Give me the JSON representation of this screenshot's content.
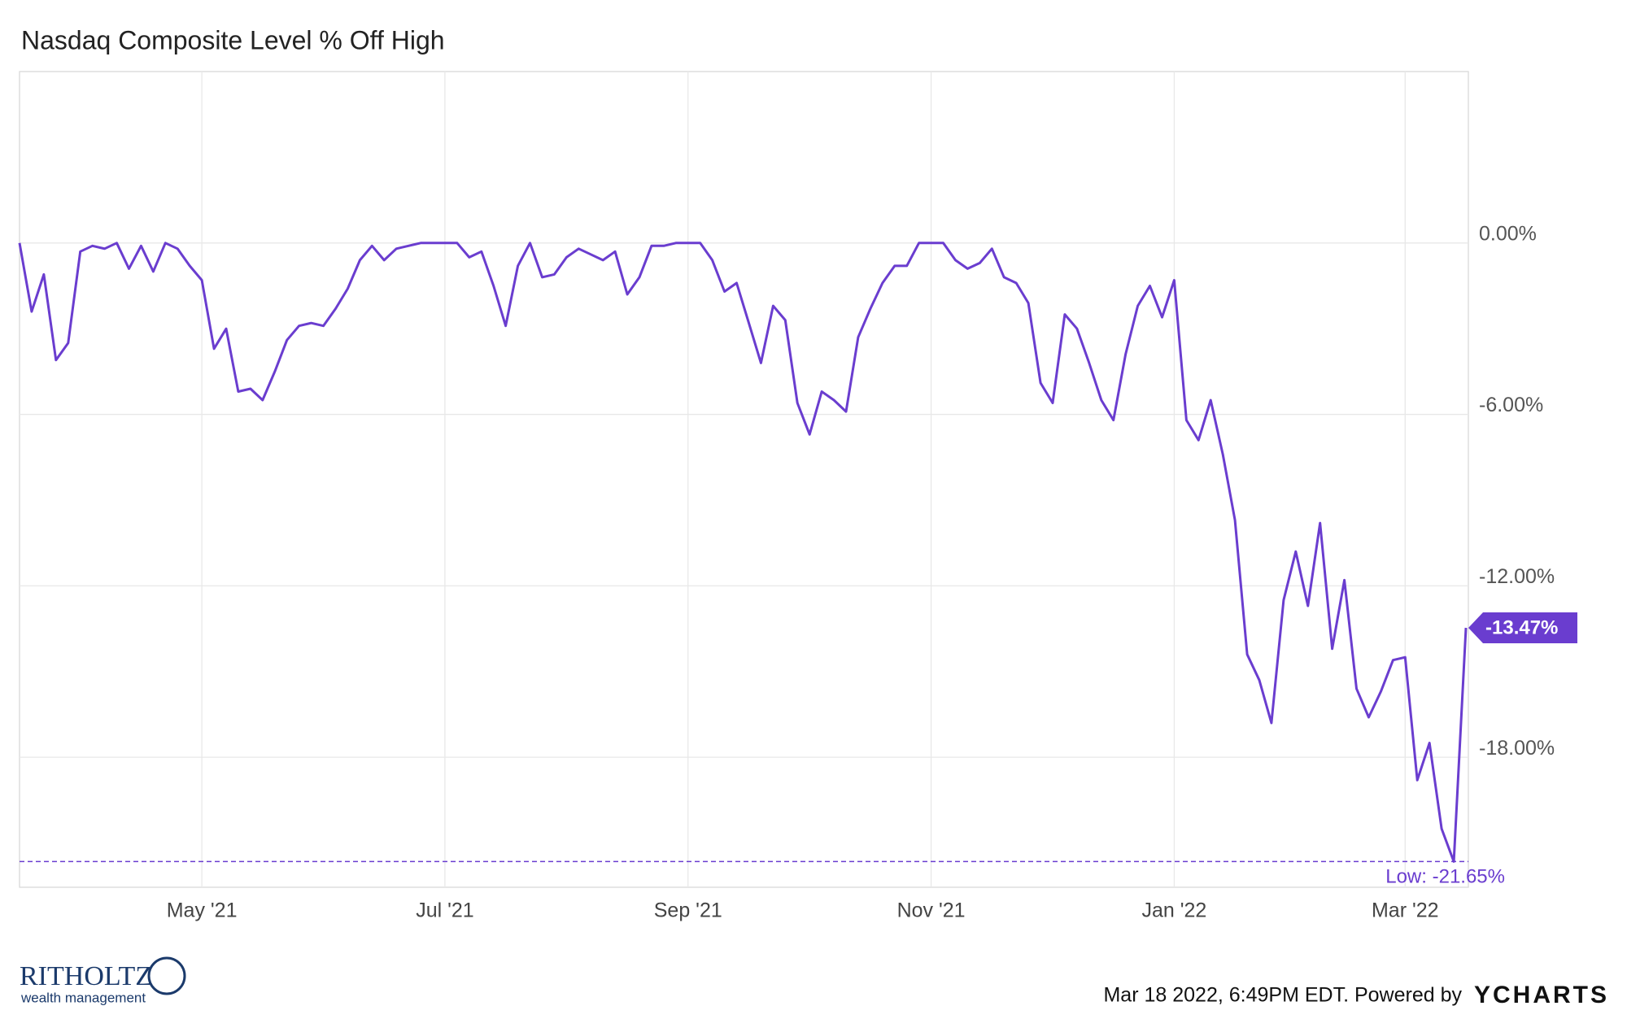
{
  "chart_data": {
    "type": "line",
    "title": "Nasdaq Composite Level % Off High",
    "categories": [
      null,
      null,
      null,
      null,
      null,
      null,
      null,
      null,
      null,
      null,
      null,
      null,
      null,
      null,
      null,
      "May '21",
      null,
      null,
      null,
      null,
      null,
      null,
      null,
      null,
      null,
      null,
      null,
      null,
      null,
      null,
      null,
      null,
      null,
      null,
      null,
      "Jul '21",
      null,
      null,
      null,
      null,
      null,
      null,
      null,
      null,
      null,
      null,
      null,
      null,
      null,
      null,
      null,
      null,
      null,
      null,
      null,
      "Sep '21",
      null,
      null,
      null,
      null,
      null,
      null,
      null,
      null,
      null,
      null,
      null,
      null,
      null,
      null,
      null,
      null,
      null,
      null,
      null,
      "Nov '21",
      null,
      null,
      null,
      null,
      null,
      null,
      null,
      null,
      null,
      null,
      null,
      null,
      null,
      null,
      null,
      null,
      null,
      null,
      null,
      "Jan '22",
      null,
      null,
      null,
      null,
      null,
      null,
      null,
      null,
      null,
      null,
      null,
      null,
      null,
      null,
      null,
      null,
      null,
      null,
      "Mar '22",
      null,
      null,
      null,
      null,
      null
    ],
    "series": [
      {
        "name": "Nasdaq Composite Level % Off High",
        "color": "#6a3dcf",
        "values": [
          0,
          -2.4,
          -1.1,
          -4.1,
          -3.5,
          -0.3,
          -0.1,
          -0.2,
          0,
          -0.9,
          -0.1,
          -1.0,
          0,
          -0.2,
          -0.8,
          -1.3,
          -3.7,
          -3.0,
          -5.2,
          -5.1,
          -5.5,
          -4.5,
          -3.4,
          -2.9,
          -2.8,
          -2.9,
          -2.3,
          -1.6,
          -0.6,
          -0.1,
          -0.6,
          -0.2,
          -0.1,
          0,
          0,
          0,
          0,
          -0.5,
          -0.3,
          -1.5,
          -2.9,
          -0.8,
          0,
          -1.2,
          -1.1,
          -0.5,
          -0.2,
          -0.4,
          -0.6,
          -0.3,
          -1.8,
          -1.2,
          -0.1,
          -0.1,
          0,
          0,
          0,
          -0.6,
          -1.7,
          -1.4,
          -2.8,
          -4.2,
          -2.2,
          -2.7,
          -5.6,
          -6.7,
          -5.2,
          -5.5,
          -5.9,
          -3.3,
          -2.3,
          -1.4,
          -0.8,
          -0.8,
          0,
          0,
          0,
          -0.6,
          -0.9,
          -0.7,
          -0.2,
          -1.2,
          -1.4,
          -2.1,
          -4.9,
          -5.6,
          -2.5,
          -3.0,
          -4.2,
          -5.5,
          -6.2,
          -3.9,
          -2.2,
          -1.5,
          -2.6,
          -1.3,
          -6.2,
          -6.9,
          -5.5,
          -7.4,
          -9.7,
          -14.4,
          -15.3,
          -16.8,
          -12.5,
          -10.8,
          -12.7,
          -9.8,
          -14.2,
          -11.8,
          -15.6,
          -16.6,
          -15.7,
          -14.6,
          -14.5,
          -18.8,
          -17.5,
          -20.5,
          -21.65,
          -13.47
        ]
      }
    ],
    "ylim": [
      -22.55,
      6
    ],
    "yticks": [
      {
        "value": 0,
        "label": "0.00%"
      },
      {
        "value": -6,
        "label": "-6.00%"
      },
      {
        "value": -12,
        "label": "-12.00%"
      },
      {
        "value": -18,
        "label": "-18.00%"
      }
    ],
    "grid": true,
    "last_value": {
      "value": -13.47,
      "label": "-13.47%"
    },
    "low": {
      "value": -21.65,
      "label": "Low: -21.65%"
    }
  },
  "footer": {
    "logo_name": "RITHOLTZ",
    "logo_sub": "wealth management",
    "timestamp": "Mar 18 2022, 6:49PM EDT. Powered by",
    "brand": "YCHARTS"
  }
}
